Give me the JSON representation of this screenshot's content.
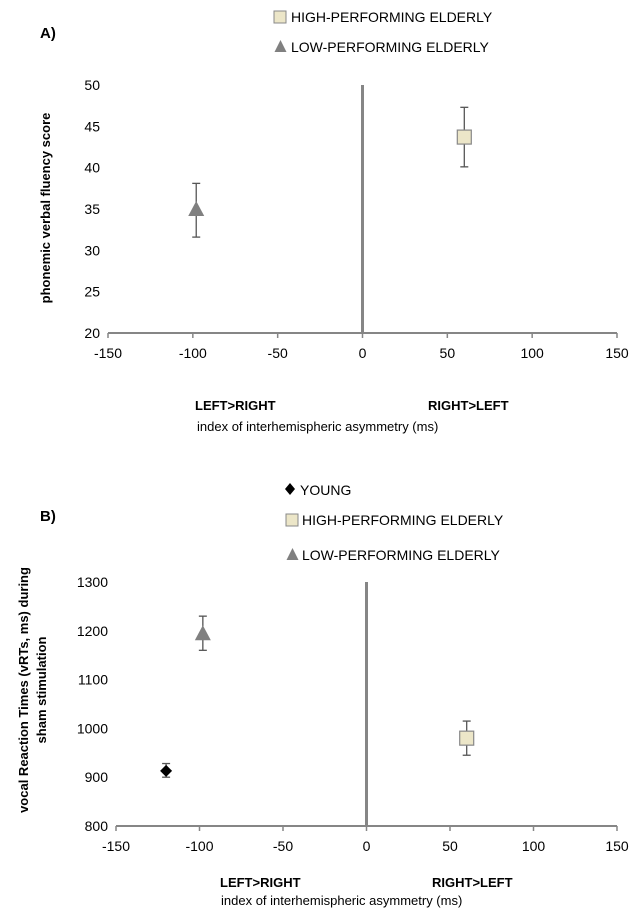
{
  "chart_data": [
    {
      "type": "scatter",
      "panel_label": "A)",
      "ylabel": "phonemic verbal fluency score",
      "xlabel": "index of interhemispheric asymmetry (ms)",
      "direction_left": "LEFT>RIGHT",
      "direction_right": "RIGHT>LEFT",
      "xlim": [
        -150,
        150
      ],
      "ylim": [
        20,
        50
      ],
      "xticks": [
        "-150",
        "-100",
        "-50",
        "0",
        "50",
        "100",
        "150"
      ],
      "yticks": [
        "20",
        "25",
        "30",
        "35",
        "40",
        "45",
        "50"
      ],
      "legend_position": "top",
      "series": [
        {
          "name": "HIGH-PERFORMING ELDERLY",
          "marker": "square",
          "color": "#ece6c8",
          "x": 60,
          "y": 43.7,
          "err_low": 40.1,
          "err_high": 47.3
        },
        {
          "name": "LOW-PERFORMING ELDERLY",
          "marker": "triangle",
          "color": "#808080",
          "x": -98,
          "y": 35.0,
          "err_low": 31.6,
          "err_high": 38.1
        }
      ]
    },
    {
      "type": "scatter",
      "panel_label": "B)",
      "ylabel": "vocal Reaction Times (vRTs, ms) during sham stimulation",
      "ylabel_line1": "vocal Reaction Times (vRTs, ms) during",
      "ylabel_line2": "sham stimulation",
      "xlabel": "index of interhemispheric asymmetry (ms)",
      "direction_left": "LEFT>RIGHT",
      "direction_right": "RIGHT>LEFT",
      "xlim": [
        -150,
        150
      ],
      "ylim": [
        800,
        1300
      ],
      "xticks": [
        "-150",
        "-100",
        "-50",
        "0",
        "50",
        "100",
        "150"
      ],
      "yticks": [
        "800",
        "900",
        "1000",
        "1100",
        "1200",
        "1300"
      ],
      "legend_position": "top",
      "series": [
        {
          "name": "YOUNG",
          "marker": "diamond",
          "color": "#000000",
          "x": -120,
          "y": 913,
          "err_low": 900,
          "err_high": 928
        },
        {
          "name": "HIGH-PERFORMING ELDERLY",
          "marker": "square",
          "color": "#ece6c8",
          "x": 60,
          "y": 980,
          "err_low": 945,
          "err_high": 1015
        },
        {
          "name": "LOW-PERFORMING ELDERLY",
          "marker": "triangle",
          "color": "#808080",
          "x": -98,
          "y": 1195,
          "err_low": 1160,
          "err_high": 1230
        }
      ]
    }
  ]
}
